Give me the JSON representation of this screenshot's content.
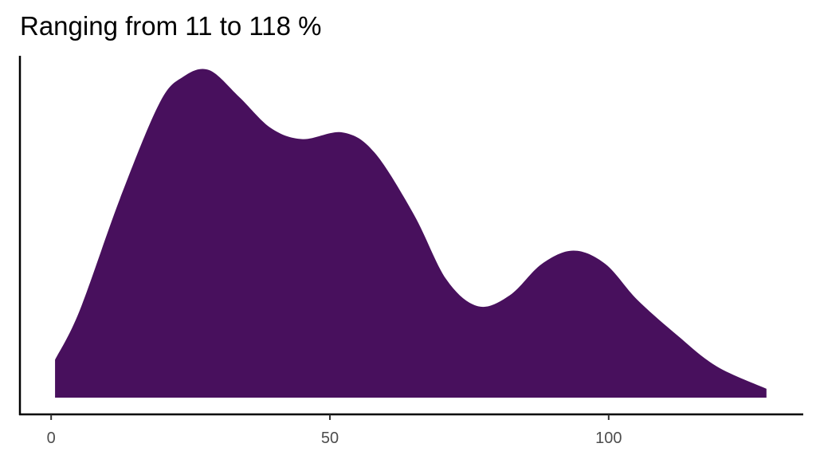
{
  "chart_data": {
    "type": "area",
    "title": "Ranging from 11 to 118 %",
    "xlabel": "",
    "ylabel": "",
    "xlim": [
      -5.6,
      134.9
    ],
    "ylim": [
      -0.00075,
      0.01534
    ],
    "x_ticks": [
      0,
      50,
      100
    ],
    "x_tick_labels": [
      "0",
      "50",
      "100"
    ],
    "grid": false,
    "fill_color": "#48105d",
    "series": [
      {
        "x": [
          0.7,
          5.1,
          12.3,
          19.4,
          23.7,
          28.3,
          33.7,
          39.4,
          45.1,
          52.3,
          58.0,
          65.1,
          70.9,
          76.6,
          82.3,
          88.0,
          93.7,
          99.4,
          105.1,
          112.3,
          119.4,
          128.3
        ],
        "y": [
          0.0017,
          0.0039,
          0.0089,
          0.0132,
          0.0144,
          0.0147,
          0.0135,
          0.0121,
          0.0116,
          0.0119,
          0.011,
          0.0082,
          0.0053,
          0.0041,
          0.0046,
          0.006,
          0.0066,
          0.006,
          0.0044,
          0.0028,
          0.0014,
          0.0004
        ]
      }
    ]
  }
}
